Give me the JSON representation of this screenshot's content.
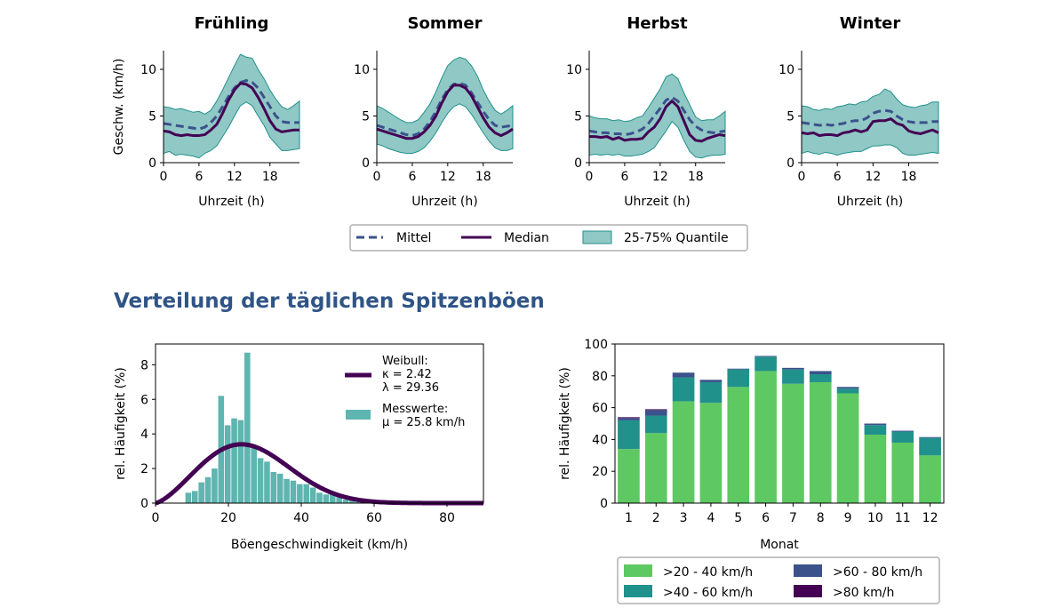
{
  "section_title": "Verteilung der täglichen Spitzenböen",
  "colors": {
    "mean": "#3b528b",
    "median": "#440154",
    "quantile_fill": "#21918c",
    "hist": "#5fb5b0",
    "weibull": "#440154",
    "bar_20_40": "#5ec962",
    "bar_40_60": "#21918c",
    "bar_60_80": "#3b528b",
    "bar_80": "#440154"
  },
  "chart_data": [
    {
      "type": "line",
      "title": "Frühling",
      "xlabel": "Uhrzeit (h)",
      "ylabel": "Geschw. (km/h)",
      "xlim": [
        0,
        23
      ],
      "ylim": [
        0,
        12
      ],
      "xticks": [
        0,
        6,
        12,
        18
      ],
      "yticks": [
        0,
        5,
        10
      ],
      "x": [
        0,
        1,
        2,
        3,
        4,
        5,
        6,
        7,
        8,
        9,
        10,
        11,
        12,
        13,
        14,
        15,
        16,
        17,
        18,
        19,
        20,
        21,
        22,
        23
      ],
      "series": [
        {
          "name": "Mittel",
          "values": [
            4.2,
            4.1,
            4.0,
            3.9,
            3.8,
            3.7,
            3.6,
            3.8,
            4.3,
            5.0,
            6.0,
            7.1,
            8.0,
            8.6,
            8.8,
            8.6,
            8.0,
            7.0,
            6.0,
            5.0,
            4.4,
            4.3,
            4.3,
            4.3
          ]
        },
        {
          "name": "Median",
          "values": [
            3.4,
            3.3,
            3.0,
            2.9,
            3.0,
            2.9,
            2.9,
            3.0,
            3.5,
            4.1,
            5.3,
            6.7,
            7.8,
            8.5,
            8.4,
            8.0,
            7.0,
            5.8,
            4.5,
            3.6,
            3.3,
            3.4,
            3.5,
            3.5
          ]
        },
        {
          "name": "25-75% Quantile",
          "lower": [
            1.0,
            1.2,
            0.8,
            0.9,
            0.8,
            0.7,
            0.5,
            1.0,
            1.3,
            1.8,
            2.8,
            3.8,
            5.0,
            6.1,
            6.5,
            6.1,
            5.0,
            4.0,
            2.7,
            2.0,
            1.3,
            1.3,
            1.4,
            1.5
          ],
          "upper": [
            6.0,
            5.9,
            5.7,
            5.8,
            5.6,
            5.4,
            5.5,
            5.2,
            5.6,
            6.6,
            7.8,
            9.1,
            10.4,
            11.6,
            11.3,
            11.2,
            10.0,
            9.0,
            7.8,
            6.8,
            6.0,
            5.7,
            6.1,
            6.6
          ]
        }
      ]
    },
    {
      "type": "line",
      "title": "Sommer",
      "xlabel": "Uhrzeit (h)",
      "ylabel": "",
      "xlim": [
        0,
        23
      ],
      "ylim": [
        0,
        12
      ],
      "xticks": [
        0,
        6,
        12,
        18
      ],
      "yticks": [
        0,
        5,
        10
      ],
      "x": [
        0,
        1,
        2,
        3,
        4,
        5,
        6,
        7,
        8,
        9,
        10,
        11,
        12,
        13,
        14,
        15,
        16,
        17,
        18,
        19,
        20,
        21,
        22,
        23
      ],
      "series": [
        {
          "name": "Mittel",
          "values": [
            4.0,
            3.8,
            3.6,
            3.4,
            3.2,
            3.0,
            2.9,
            3.1,
            3.6,
            4.4,
            5.5,
            6.8,
            7.8,
            8.4,
            8.5,
            8.3,
            7.5,
            6.5,
            5.5,
            4.6,
            4.0,
            3.8,
            3.9,
            4.0
          ]
        },
        {
          "name": "Median",
          "values": [
            3.6,
            3.4,
            3.2,
            3.0,
            2.8,
            2.6,
            2.6,
            2.8,
            3.3,
            4.0,
            5.0,
            6.4,
            7.6,
            8.3,
            8.3,
            8.0,
            7.2,
            6.0,
            4.8,
            3.8,
            3.2,
            2.9,
            3.2,
            3.6
          ]
        },
        {
          "name": "25-75% Quantile",
          "lower": [
            2.0,
            1.8,
            1.5,
            1.3,
            1.1,
            1.0,
            1.0,
            1.2,
            1.6,
            2.3,
            3.2,
            4.3,
            5.3,
            6.0,
            6.3,
            6.0,
            5.2,
            4.2,
            3.2,
            2.3,
            1.6,
            1.3,
            1.3,
            1.5
          ],
          "upper": [
            6.1,
            5.8,
            5.4,
            5.0,
            4.6,
            4.3,
            4.3,
            4.6,
            5.4,
            6.3,
            7.6,
            9.1,
            10.4,
            11.0,
            11.3,
            11.1,
            10.4,
            9.3,
            7.8,
            6.6,
            5.6,
            5.2,
            5.6,
            6.1
          ]
        }
      ]
    },
    {
      "type": "line",
      "title": "Herbst",
      "xlabel": "Uhrzeit (h)",
      "ylabel": "",
      "xlim": [
        0,
        23
      ],
      "ylim": [
        0,
        12
      ],
      "xticks": [
        0,
        6,
        12,
        18
      ],
      "yticks": [
        0,
        5,
        10
      ],
      "x": [
        0,
        1,
        2,
        3,
        4,
        5,
        6,
        7,
        8,
        9,
        10,
        11,
        12,
        13,
        14,
        15,
        16,
        17,
        18,
        19,
        20,
        21,
        22,
        23
      ],
      "series": [
        {
          "name": "Mittel",
          "values": [
            3.4,
            3.3,
            3.2,
            3.2,
            3.1,
            3.1,
            3.0,
            3.1,
            3.3,
            3.6,
            4.2,
            5.0,
            5.8,
            6.7,
            7.0,
            6.6,
            5.6,
            4.6,
            3.9,
            3.5,
            3.3,
            3.2,
            3.3,
            3.4
          ]
        },
        {
          "name": "Median",
          "values": [
            2.8,
            2.8,
            2.7,
            2.8,
            2.5,
            2.7,
            2.4,
            2.5,
            2.5,
            2.6,
            3.3,
            3.8,
            4.7,
            6.0,
            6.6,
            6.0,
            4.5,
            3.0,
            2.4,
            2.3,
            2.6,
            2.8,
            3.0,
            2.9
          ]
        },
        {
          "name": "25-75% Quantile",
          "lower": [
            0.8,
            0.9,
            0.8,
            0.9,
            0.8,
            0.9,
            0.7,
            0.7,
            0.8,
            0.9,
            1.2,
            1.6,
            2.5,
            3.4,
            4.4,
            3.8,
            2.4,
            1.2,
            0.6,
            0.5,
            0.7,
            0.8,
            0.8,
            0.9
          ],
          "upper": [
            5.0,
            4.8,
            4.7,
            4.7,
            4.5,
            4.6,
            4.4,
            4.5,
            4.8,
            5.0,
            5.9,
            6.9,
            7.9,
            9.2,
            9.5,
            9.0,
            7.5,
            6.2,
            4.9,
            4.5,
            4.6,
            4.6,
            5.0,
            5.5
          ]
        }
      ]
    },
    {
      "type": "line",
      "title": "Winter",
      "xlabel": "Uhrzeit (h)",
      "ylabel": "",
      "xlim": [
        0,
        23
      ],
      "ylim": [
        0,
        12
      ],
      "xticks": [
        0,
        6,
        12,
        18
      ],
      "yticks": [
        0,
        5,
        10
      ],
      "x": [
        0,
        1,
        2,
        3,
        4,
        5,
        6,
        7,
        8,
        9,
        10,
        11,
        12,
        13,
        14,
        15,
        16,
        17,
        18,
        19,
        20,
        21,
        22,
        23
      ],
      "series": [
        {
          "name": "Mittel",
          "values": [
            4.3,
            4.2,
            4.1,
            4.0,
            4.1,
            4.0,
            4.1,
            4.2,
            4.4,
            4.5,
            4.5,
            4.8,
            5.3,
            5.5,
            5.6,
            5.5,
            5.0,
            4.6,
            4.4,
            4.3,
            4.3,
            4.3,
            4.4,
            4.4
          ]
        },
        {
          "name": "Median",
          "values": [
            3.2,
            3.1,
            3.2,
            2.9,
            3.0,
            3.0,
            2.9,
            3.2,
            3.3,
            3.5,
            3.3,
            3.5,
            4.4,
            4.5,
            4.5,
            4.7,
            4.2,
            4.0,
            3.4,
            3.2,
            3.1,
            3.3,
            3.5,
            3.2
          ]
        },
        {
          "name": "25-75% Quantile",
          "lower": [
            1.0,
            1.2,
            1.0,
            0.9,
            1.1,
            1.0,
            0.8,
            1.0,
            1.1,
            1.2,
            1.2,
            1.5,
            1.8,
            1.8,
            1.9,
            1.9,
            1.6,
            1.0,
            0.8,
            0.8,
            0.9,
            1.0,
            1.1,
            1.0
          ],
          "upper": [
            6.1,
            6.0,
            5.7,
            5.6,
            5.8,
            5.7,
            6.0,
            6.1,
            6.3,
            6.2,
            6.5,
            6.6,
            7.1,
            7.3,
            7.9,
            7.6,
            6.8,
            6.2,
            6.0,
            5.9,
            6.1,
            6.2,
            6.5,
            6.5
          ]
        }
      ]
    },
    {
      "type": "bar",
      "title": "",
      "xlabel": "Böengeschwindigkeit (km/h)",
      "ylabel": "rel. Häufigkeit (%)",
      "xlim": [
        0,
        90
      ],
      "ylim": [
        0,
        9.2
      ],
      "xticks": [
        0,
        20,
        40,
        60,
        80
      ],
      "yticks": [
        0,
        2,
        4,
        6,
        8
      ],
      "bin_width": 1.6,
      "x": [
        9,
        10.8,
        12.6,
        14.4,
        16.2,
        18,
        19.8,
        21.6,
        23.4,
        25.2,
        27,
        28.8,
        30.6,
        32.4,
        34.2,
        36,
        37.8,
        39.6,
        41.4,
        43.2,
        45,
        46.8,
        48.6,
        50.4,
        52.2,
        54,
        55.8,
        57.6
      ],
      "series": [
        {
          "name": "Messwerte:",
          "values": [
            0.6,
            0.7,
            1.2,
            1.5,
            2.0,
            6.2,
            4.5,
            4.9,
            4.8,
            8.7,
            3.2,
            2.6,
            2.4,
            1.8,
            1.7,
            1.4,
            1.3,
            1.1,
            1.1,
            0.9,
            0.6,
            0.5,
            0.5,
            0.4,
            0.2,
            0.3,
            0.15,
            0.2
          ]
        },
        {
          "name": "Weibull:",
          "kappa": 2.42,
          "lambda": 29.36,
          "peak_value": 3.4
        }
      ],
      "legend": [
        {
          "line1": "Weibull:",
          "line2": "κ = 2.42",
          "line3": "λ = 29.36"
        },
        {
          "line1": "Messwerte:",
          "line2": "μ = 25.8 km/h"
        }
      ]
    },
    {
      "type": "bar",
      "title": "",
      "xlabel": "Monat",
      "ylabel": "rel. Häufigkeit (%)",
      "ylim": [
        0,
        100
      ],
      "yticks": [
        0,
        20,
        40,
        60,
        80,
        100
      ],
      "categories": [
        "1",
        "2",
        "3",
        "4",
        "5",
        "6",
        "7",
        "8",
        "9",
        "10",
        "11",
        "12"
      ],
      "series": [
        {
          "name": ">20 - 40 km/h",
          "values": [
            34,
            44,
            64,
            63,
            73,
            83,
            75,
            76,
            69,
            43,
            38,
            30
          ]
        },
        {
          "name": ">40 - 60 km/h",
          "values": [
            18,
            11,
            15,
            13,
            11,
            9,
            9,
            5,
            3,
            6,
            7,
            11
          ]
        },
        {
          "name": ">60 - 80 km/h",
          "values": [
            1.5,
            3.5,
            3,
            1.5,
            0.5,
            0.5,
            1,
            2,
            1,
            1,
            0.5,
            0.5
          ]
        },
        {
          "name": ">80 km/h",
          "values": [
            0.5,
            0.5,
            0,
            0,
            0,
            0,
            0,
            0,
            0,
            0,
            0,
            0
          ]
        }
      ]
    }
  ],
  "top_legend": [
    {
      "name": "Mittel",
      "kind": "dashed"
    },
    {
      "name": "Median",
      "kind": "solid"
    },
    {
      "name": "25-75% Quantile",
      "kind": "patch"
    }
  ]
}
